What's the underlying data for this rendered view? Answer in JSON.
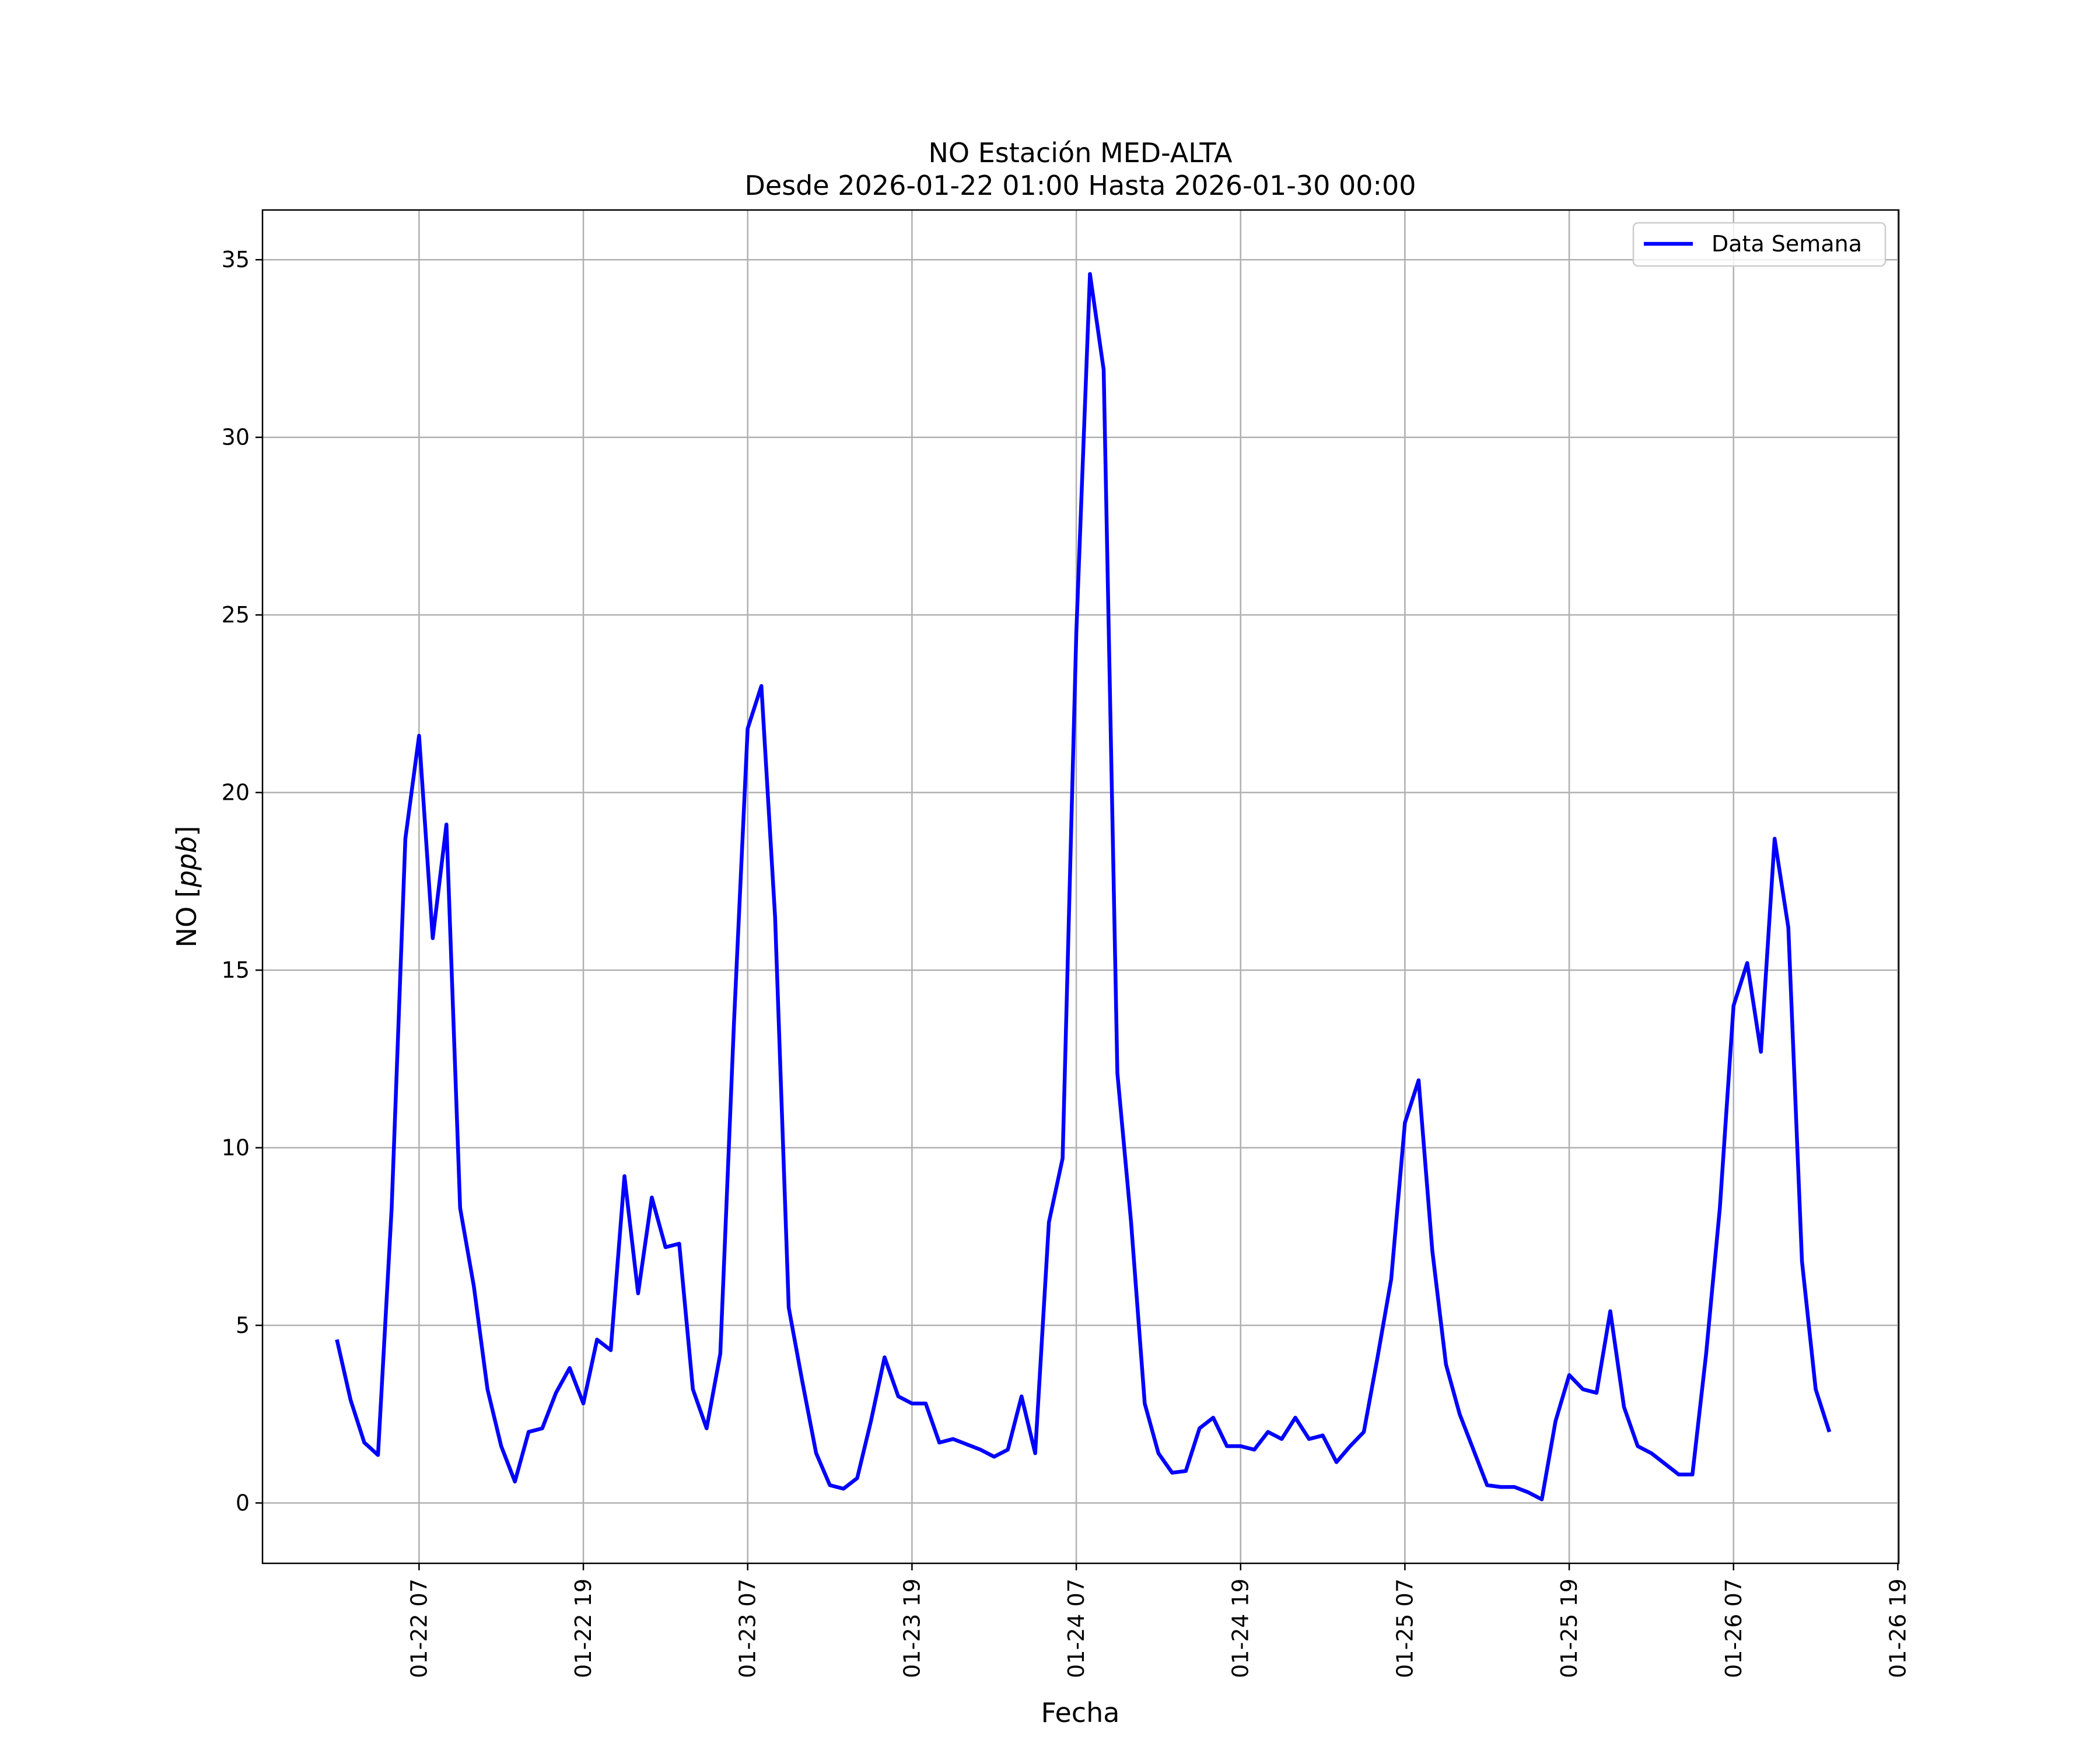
{
  "chart_data": {
    "type": "line",
    "title": "NO Estación MED-ALTA",
    "subtitle": "Desde 2026-01-22 01:00 Hasta 2026-01-30 00:00",
    "xlabel": "Fecha",
    "ylabel": "NO [ppb]",
    "ylabel_unit": "ppb",
    "ylabel_prefix": "NO",
    "xlim": [
      "2026-01-21 19:34",
      "2026-01-26 19:04"
    ],
    "ylim": [
      -1.7,
      36.4
    ],
    "yticks": [
      0,
      5,
      10,
      15,
      20,
      25,
      30,
      35
    ],
    "xticks": [
      {
        "value": "2026-01-22 07:00",
        "label": "01-22 07"
      },
      {
        "value": "2026-01-22 19:00",
        "label": "01-22 19"
      },
      {
        "value": "2026-01-23 07:00",
        "label": "01-23 07"
      },
      {
        "value": "2026-01-23 19:00",
        "label": "01-23 19"
      },
      {
        "value": "2026-01-24 07:00",
        "label": "01-24 07"
      },
      {
        "value": "2026-01-24 19:00",
        "label": "01-24 19"
      },
      {
        "value": "2026-01-25 07:00",
        "label": "01-25 07"
      },
      {
        "value": "2026-01-25 19:00",
        "label": "01-25 19"
      },
      {
        "value": "2026-01-26 07:00",
        "label": "01-26 07"
      },
      {
        "value": "2026-01-26 19:00",
        "label": "01-26 19"
      }
    ],
    "grid": true,
    "legend_position": "top-right",
    "series": [
      {
        "name": "Data Semana",
        "color": "#0000ff",
        "start": "2026-01-22 01:00",
        "interval_hours": 1,
        "values": [
          4.6,
          2.9,
          1.7,
          1.35,
          8.3,
          18.7,
          21.6,
          15.9,
          19.1,
          8.3,
          6.1,
          3.2,
          1.6,
          0.6,
          2.0,
          2.1,
          3.1,
          3.8,
          2.8,
          4.6,
          4.3,
          9.2,
          5.9,
          8.6,
          7.2,
          7.3,
          3.2,
          2.1,
          4.2,
          13.5,
          21.8,
          23.0,
          16.5,
          5.5,
          3.4,
          1.4,
          0.5,
          0.4,
          0.7,
          2.3,
          4.1,
          3.0,
          2.8,
          2.8,
          1.7,
          1.8,
          1.65,
          1.5,
          1.3,
          1.5,
          3.0,
          1.4,
          7.9,
          9.7,
          24.5,
          34.6,
          31.9,
          12.1,
          7.9,
          2.8,
          1.4,
          0.85,
          0.9,
          2.1,
          2.4,
          1.6,
          1.6,
          1.5,
          2.0,
          1.8,
          2.4,
          1.8,
          1.9,
          1.15,
          1.6,
          2.0,
          4.1,
          6.3,
          10.7,
          11.9,
          7.1,
          3.9,
          2.5,
          1.5,
          0.5,
          0.45,
          0.45,
          0.3,
          0.1,
          2.3,
          3.6,
          3.2,
          3.1,
          5.4,
          2.7,
          1.6,
          1.4,
          1.1,
          0.8,
          0.8,
          4.2,
          8.3,
          14.0,
          15.2,
          12.7,
          18.7,
          16.2,
          6.8,
          3.2,
          2.0
        ]
      }
    ]
  }
}
